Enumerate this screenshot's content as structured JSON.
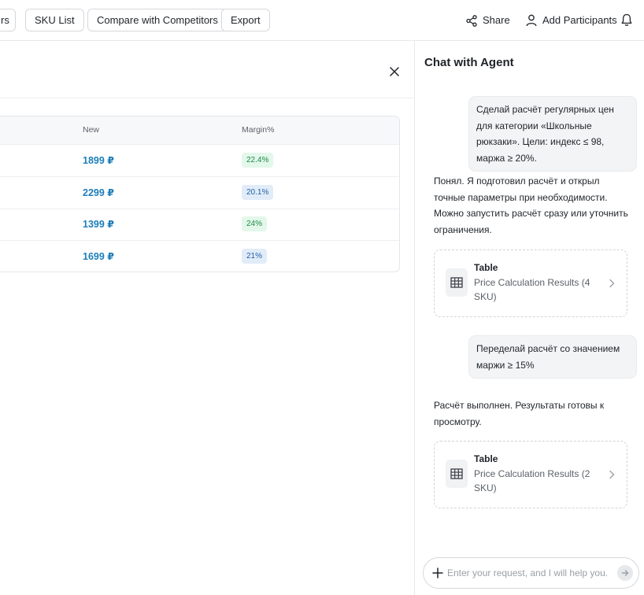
{
  "toolbar": {
    "buttons": [
      {
        "label": "rs"
      },
      {
        "label": "SKU List"
      },
      {
        "label": "Compare with Competitors"
      },
      {
        "label": "Export"
      }
    ],
    "share_label": "Share",
    "add_participants_label": "Add Participants",
    "icons": {
      "share": "share-icon",
      "user": "user-icon",
      "bell": "bell-icon"
    }
  },
  "results_table": {
    "columns": [
      "New",
      "Margin%"
    ],
    "rows": [
      {
        "new": "1899 ₽",
        "margin": "22.4%",
        "margin_color": "green"
      },
      {
        "new": "2299 ₽",
        "margin": "20.1%",
        "margin_color": "blue"
      },
      {
        "new": "1399 ₽",
        "margin": "24%",
        "margin_color": "green"
      },
      {
        "new": "1699 ₽",
        "margin": "21%",
        "margin_color": "blue"
      }
    ]
  },
  "chat": {
    "title": "Chat with Agent",
    "messages": [
      {
        "role": "user",
        "text": "Сделай расчёт регулярных цен для категории «Школьные рюкзаки». Цели: индекс ≤ 98, маржа ≥ 20%."
      },
      {
        "role": "agent",
        "text": "Понял. Я подготовил расчёт и открыл точные параметры при необходимости. Можно запустить расчёт сразу или уточнить ограничения."
      },
      {
        "role": "card",
        "title": "Table",
        "subtitle": "Price Calculation Results (4 SKU)"
      },
      {
        "role": "user",
        "text": "Переделай расчёт со значением маржи ≥ 15%"
      },
      {
        "role": "agent",
        "text": "Расчёт выполнен. Результаты готовы к просмотру."
      },
      {
        "role": "card",
        "title": "Table",
        "subtitle": "Price Calculation Results (2 SKU)"
      }
    ],
    "input_placeholder": "Enter your request, and I will help you..."
  },
  "colors": {
    "price_link": "#1d7fb8",
    "badge_green_bg": "#e3f7ea",
    "badge_green_text": "#208a45",
    "badge_blue_bg": "#e1ecf8",
    "badge_blue_text": "#2561a8"
  }
}
